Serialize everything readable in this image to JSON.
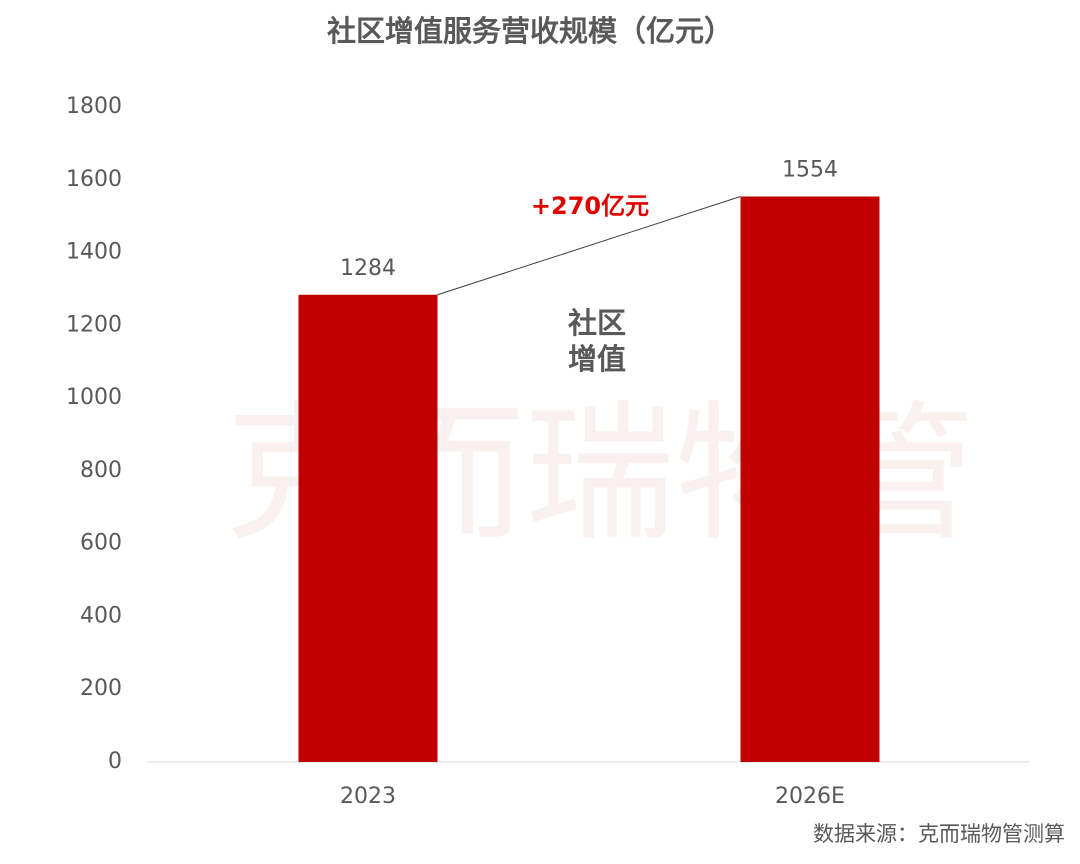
{
  "chart_data": {
    "type": "bar",
    "title": "社区增值服务营收规模（亿元）",
    "categories": [
      "2023",
      "2026E"
    ],
    "values": [
      1284,
      1554
    ],
    "color": "#c00000",
    "ylim": [
      0,
      1800
    ],
    "yticks": [
      0,
      200,
      400,
      600,
      800,
      1000,
      1200,
      1400,
      1600,
      1800
    ],
    "grid": false,
    "annotations": {
      "growth": "+270亿元",
      "segment": [
        "社区",
        "增值"
      ],
      "watermark": "克而瑞物管"
    },
    "source": "数据来源：克而瑞物管测算"
  }
}
